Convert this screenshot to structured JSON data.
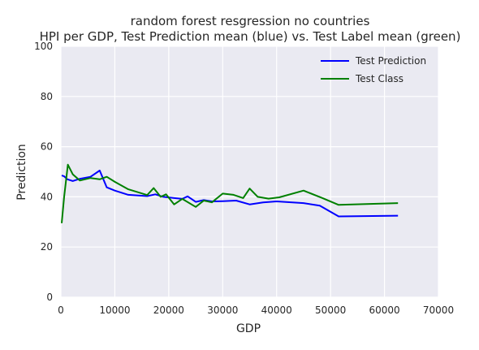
{
  "chart_data": {
    "type": "line",
    "title": "random forest resgression no countries",
    "subtitle": "HPI per GDP, Test Prediction mean (blue) vs. Test Label mean (green)",
    "xlabel": "GDP",
    "ylabel": "Prediction",
    "xlim": [
      0,
      70000
    ],
    "ylim": [
      0,
      100
    ],
    "xticks": [
      0,
      10000,
      20000,
      30000,
      40000,
      50000,
      60000,
      70000
    ],
    "yticks": [
      0,
      20,
      40,
      60,
      80,
      100
    ],
    "grid": true,
    "legend_position": "top-right",
    "series": [
      {
        "name": "Test Prediction",
        "color": "#0000ff",
        "x": [
          150,
          600,
          1200,
          2200,
          3500,
          5500,
          7200,
          8500,
          10000,
          12500,
          16000,
          17500,
          19000,
          21000,
          22500,
          23500,
          25000,
          26500,
          28000,
          30000,
          32500,
          35000,
          37500,
          40000,
          45000,
          48000,
          51500,
          62500
        ],
        "y": [
          48.5,
          48.2,
          47.0,
          46.3,
          47.2,
          48.0,
          50.5,
          43.8,
          42.5,
          40.8,
          40.3,
          41.0,
          40.0,
          39.5,
          39.2,
          40.2,
          38.0,
          38.7,
          38.2,
          38.3,
          38.5,
          37.0,
          37.8,
          38.2,
          37.5,
          36.5,
          32.2,
          32.5
        ]
      },
      {
        "name": "Test Class",
        "color": "#008000",
        "x": [
          150,
          600,
          1300,
          2200,
          3500,
          5500,
          7200,
          8500,
          10000,
          12500,
          16000,
          17200,
          18500,
          19500,
          21000,
          22500,
          25000,
          26500,
          28000,
          30000,
          32000,
          33800,
          35000,
          36500,
          38500,
          40500,
          45000,
          48500,
          51500,
          62500
        ],
        "y": [
          29.5,
          40.0,
          52.8,
          49.0,
          46.5,
          47.5,
          47.0,
          48.0,
          46.0,
          43.0,
          40.7,
          43.5,
          40.0,
          41.0,
          37.0,
          39.2,
          36.0,
          38.5,
          37.8,
          41.3,
          40.8,
          39.5,
          43.3,
          40.0,
          39.3,
          39.8,
          42.5,
          39.5,
          36.8,
          37.5
        ]
      }
    ]
  }
}
